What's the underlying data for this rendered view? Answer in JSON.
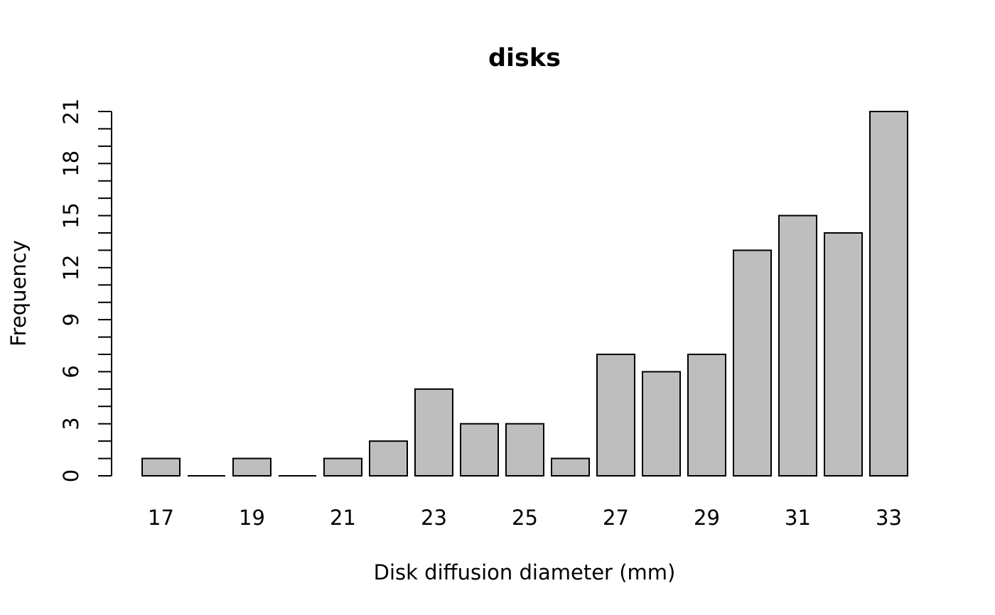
{
  "chart_data": {
    "type": "bar",
    "title": "disks",
    "xlabel": "Disk diffusion diameter (mm)",
    "ylabel": "Frequency",
    "categories": [
      "17",
      "18",
      "19",
      "20",
      "21",
      "22",
      "23",
      "24",
      "25",
      "26",
      "27",
      "28",
      "29",
      "30",
      "31",
      "32",
      "33"
    ],
    "x_tick_labels": [
      "17",
      "19",
      "21",
      "23",
      "25",
      "27",
      "29",
      "31",
      "33"
    ],
    "values": [
      1,
      0,
      1,
      0,
      1,
      2,
      5,
      3,
      3,
      1,
      7,
      6,
      7,
      13,
      15,
      14,
      21
    ],
    "ylim": [
      0,
      21
    ],
    "y_ticks_labeled": [
      0,
      3,
      6,
      9,
      12,
      15,
      18,
      21
    ],
    "y_minor_step": 1,
    "grid": false,
    "legend": "none",
    "bar_color": "#bebebe",
    "edge_color": "#000000"
  }
}
